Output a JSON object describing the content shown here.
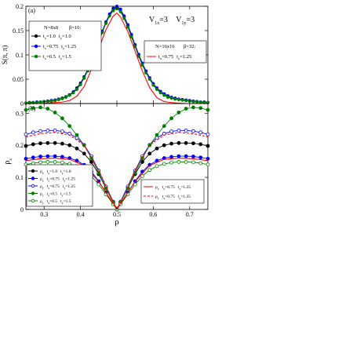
{
  "chart_data": [
    {
      "type": "line",
      "panel_label": "(a)",
      "ylabel": "S(π, π)",
      "annotation": "V₁x=3  V₁y=3",
      "annotation_parts": {
        "a": "V",
        "a_sub": "1x",
        "a_val": "=3",
        "b": "V",
        "b_sub": "1y",
        "b_val": "=3"
      },
      "xlim": [
        0.25,
        0.75
      ],
      "ylim": [
        0,
        0.2
      ],
      "yticks": [
        0,
        0.05,
        0.1,
        0.15,
        0.2
      ],
      "ytick_labels": [
        "0",
        "0.05",
        "0.1",
        "0.15",
        "0.2"
      ],
      "legend_left_title": [
        "N=8x8",
        "β=16:"
      ],
      "legend_right_title": [
        "N=16x16",
        "β=32:"
      ],
      "series": [
        {
          "name": "tₓ=1.0  tᵧ=1.0",
          "color": "#000000",
          "marker": "filled",
          "group": "left",
          "label_parts": [
            "t",
            "x",
            "=1.0",
            "t",
            "y",
            "=1.0"
          ],
          "x": [
            0.25,
            0.26,
            0.27,
            0.28,
            0.29,
            0.3,
            0.31,
            0.32,
            0.33,
            0.34,
            0.35,
            0.36,
            0.37,
            0.38,
            0.39,
            0.4,
            0.41,
            0.42,
            0.43,
            0.44,
            0.45,
            0.46,
            0.47,
            0.48,
            0.49,
            0.5,
            0.51,
            0.52,
            0.53,
            0.54,
            0.55,
            0.56,
            0.57,
            0.58,
            0.59,
            0.6,
            0.61,
            0.62,
            0.63,
            0.64,
            0.65,
            0.66,
            0.67,
            0.68,
            0.69,
            0.7,
            0.71,
            0.72,
            0.73,
            0.74,
            0.75
          ],
          "y": [
            0.001,
            0.002,
            0.002,
            0.003,
            0.003,
            0.004,
            0.005,
            0.006,
            0.007,
            0.009,
            0.011,
            0.014,
            0.018,
            0.024,
            0.032,
            0.042,
            0.055,
            0.07,
            0.088,
            0.108,
            0.128,
            0.148,
            0.166,
            0.182,
            0.194,
            0.198,
            0.192,
            0.178,
            0.16,
            0.14,
            0.12,
            0.1,
            0.082,
            0.066,
            0.052,
            0.04,
            0.031,
            0.024,
            0.019,
            0.015,
            0.012,
            0.01,
            0.009,
            0.008,
            0.007,
            0.006,
            0.005,
            0.004,
            0.003,
            0.003,
            0.002
          ]
        },
        {
          "name": "tₓ=0.75  tᵧ=1.25",
          "color": "#0000ff",
          "marker": "filled",
          "group": "left",
          "label_parts": [
            "t",
            "x",
            "=0.75",
            "t",
            "y",
            "=1.25"
          ],
          "x": [
            0.25,
            0.26,
            0.27,
            0.28,
            0.29,
            0.3,
            0.31,
            0.32,
            0.33,
            0.34,
            0.35,
            0.36,
            0.37,
            0.38,
            0.39,
            0.4,
            0.41,
            0.42,
            0.43,
            0.44,
            0.45,
            0.46,
            0.47,
            0.48,
            0.49,
            0.5,
            0.51,
            0.52,
            0.53,
            0.54,
            0.55,
            0.56,
            0.57,
            0.58,
            0.59,
            0.6,
            0.61,
            0.62,
            0.63,
            0.64,
            0.65,
            0.66,
            0.67,
            0.68,
            0.69,
            0.7,
            0.71,
            0.72,
            0.73,
            0.74,
            0.75
          ],
          "y": [
            0.001,
            0.002,
            0.002,
            0.003,
            0.003,
            0.004,
            0.005,
            0.006,
            0.007,
            0.009,
            0.011,
            0.014,
            0.018,
            0.023,
            0.031,
            0.041,
            0.054,
            0.069,
            0.087,
            0.107,
            0.128,
            0.149,
            0.168,
            0.184,
            0.196,
            0.2,
            0.194,
            0.18,
            0.162,
            0.142,
            0.121,
            0.101,
            0.083,
            0.067,
            0.053,
            0.041,
            0.032,
            0.025,
            0.02,
            0.016,
            0.013,
            0.011,
            0.009,
            0.008,
            0.007,
            0.006,
            0.005,
            0.004,
            0.003,
            0.003,
            0.002
          ]
        },
        {
          "name": "tₓ=0.5  tᵧ=1.5",
          "color": "#008000",
          "marker": "filled",
          "group": "left",
          "label_parts": [
            "t",
            "x",
            "=0.5",
            "t",
            "y",
            "=1.5"
          ],
          "x": [
            0.25,
            0.26,
            0.27,
            0.28,
            0.29,
            0.3,
            0.31,
            0.32,
            0.33,
            0.34,
            0.35,
            0.36,
            0.37,
            0.38,
            0.39,
            0.4,
            0.41,
            0.42,
            0.43,
            0.44,
            0.45,
            0.46,
            0.47,
            0.48,
            0.49,
            0.5,
            0.51,
            0.52,
            0.53,
            0.54,
            0.55,
            0.56,
            0.57,
            0.58,
            0.59,
            0.6,
            0.61,
            0.62,
            0.63,
            0.64,
            0.65,
            0.66,
            0.67,
            0.68,
            0.69,
            0.7,
            0.71,
            0.72,
            0.73,
            0.74,
            0.75
          ],
          "y": [
            0.001,
            0.001,
            0.002,
            0.002,
            0.003,
            0.004,
            0.004,
            0.005,
            0.006,
            0.008,
            0.01,
            0.013,
            0.017,
            0.022,
            0.029,
            0.039,
            0.052,
            0.067,
            0.085,
            0.105,
            0.126,
            0.146,
            0.165,
            0.18,
            0.191,
            0.195,
            0.189,
            0.175,
            0.157,
            0.137,
            0.117,
            0.097,
            0.079,
            0.063,
            0.05,
            0.038,
            0.029,
            0.022,
            0.017,
            0.013,
            0.011,
            0.009,
            0.008,
            0.007,
            0.006,
            0.005,
            0.004,
            0.003,
            0.003,
            0.002,
            0.002
          ]
        },
        {
          "name": "tₓ=0.75  tᵧ=1.25",
          "color": "#ff0000",
          "marker": "none",
          "group": "right",
          "label_parts": [
            "t",
            "x",
            "=0.75",
            "t",
            "y",
            "=1.25"
          ],
          "x": [
            0.25,
            0.27,
            0.29,
            0.31,
            0.33,
            0.35,
            0.37,
            0.39,
            0.41,
            0.43,
            0.45,
            0.47,
            0.49,
            0.5,
            0.51,
            0.53,
            0.55,
            0.57,
            0.59,
            0.61,
            0.63,
            0.65,
            0.67,
            0.69,
            0.71,
            0.73,
            0.75
          ],
          "y": [
            0.0,
            0.0,
            0.0,
            0.001,
            0.002,
            0.003,
            0.006,
            0.015,
            0.035,
            0.07,
            0.112,
            0.152,
            0.18,
            0.186,
            0.178,
            0.148,
            0.108,
            0.067,
            0.033,
            0.012,
            0.004,
            0.002,
            0.001,
            0.0,
            0.0,
            0.0,
            0.0
          ]
        }
      ]
    },
    {
      "type": "line",
      "panel_label": "(b)",
      "ylabel": "ρ_s",
      "ylabel_parts": {
        "main": "ρ",
        "sub": "s"
      },
      "xlabel": "ρ",
      "xlim": [
        0.25,
        0.75
      ],
      "ylim": [
        0,
        0.33
      ],
      "xticks": [
        0.3,
        0.4,
        0.5,
        0.6,
        0.7
      ],
      "xtick_labels": [
        "0.3",
        "0.4",
        "0.5",
        "0.6",
        "0.7"
      ],
      "yticks": [
        0,
        0.1,
        0.2,
        0.3
      ],
      "ytick_labels": [
        "0",
        "0.1",
        "0.2",
        "0.3"
      ],
      "series": [
        {
          "name": "ρ_x  t_x=1.0  t_y=1.0",
          "color": "#000000",
          "marker": "filled",
          "group": "left",
          "label_parts": [
            "ρ",
            "x",
            "t",
            "x",
            "=1.0",
            "t",
            "y",
            "=1.0"
          ],
          "x": [
            0.25,
            0.27,
            0.29,
            0.31,
            0.33,
            0.35,
            0.37,
            0.39,
            0.41,
            0.43,
            0.45,
            0.47,
            0.49,
            0.5,
            0.51,
            0.53,
            0.55,
            0.57,
            0.59,
            0.61,
            0.63,
            0.65,
            0.67,
            0.69,
            0.71,
            0.73,
            0.75
          ],
          "y": [
            0.198,
            0.203,
            0.206,
            0.207,
            0.207,
            0.205,
            0.2,
            0.19,
            0.174,
            0.148,
            0.11,
            0.066,
            0.022,
            0.0,
            0.022,
            0.066,
            0.11,
            0.148,
            0.174,
            0.19,
            0.2,
            0.205,
            0.207,
            0.207,
            0.206,
            0.203,
            0.198
          ]
        },
        {
          "name": "ρ_x  t_x=0.75  t_y=1.25",
          "color": "#0000ff",
          "marker": "filled",
          "group": "left",
          "label_parts": [
            "ρ",
            "x",
            "t",
            "x",
            "=0.75",
            "t",
            "y",
            "=1.25"
          ],
          "x": [
            0.25,
            0.27,
            0.29,
            0.31,
            0.33,
            0.35,
            0.37,
            0.39,
            0.41,
            0.43,
            0.45,
            0.47,
            0.49,
            0.5,
            0.51,
            0.53,
            0.55,
            0.57,
            0.59,
            0.61,
            0.63,
            0.65,
            0.67,
            0.69,
            0.71,
            0.73,
            0.75
          ],
          "y": [
            0.158,
            0.162,
            0.165,
            0.166,
            0.166,
            0.164,
            0.16,
            0.152,
            0.139,
            0.118,
            0.088,
            0.053,
            0.018,
            0.0,
            0.018,
            0.053,
            0.088,
            0.118,
            0.139,
            0.152,
            0.16,
            0.164,
            0.166,
            0.166,
            0.165,
            0.162,
            0.158
          ]
        },
        {
          "name": "ρ_y  t_x=0.75  t_y=1.25",
          "color": "#0000ff",
          "marker": "open",
          "group": "left",
          "label_parts": [
            "ρ",
            "y",
            "t",
            "x",
            "=0.75",
            "t",
            "y",
            "=1.25"
          ],
          "x": [
            0.25,
            0.27,
            0.29,
            0.31,
            0.33,
            0.35,
            0.37,
            0.39,
            0.41,
            0.43,
            0.45,
            0.47,
            0.49,
            0.5,
            0.51,
            0.53,
            0.55,
            0.57,
            0.59,
            0.61,
            0.63,
            0.65,
            0.67,
            0.69,
            0.71,
            0.73,
            0.75
          ],
          "y": [
            0.234,
            0.24,
            0.244,
            0.246,
            0.246,
            0.243,
            0.236,
            0.223,
            0.201,
            0.166,
            0.121,
            0.071,
            0.024,
            0.0,
            0.024,
            0.071,
            0.121,
            0.166,
            0.201,
            0.223,
            0.236,
            0.243,
            0.246,
            0.246,
            0.244,
            0.24,
            0.234
          ]
        },
        {
          "name": "ρ_x  t_x=0.5  t_y=1.5",
          "color": "#008000",
          "marker": "filled",
          "group": "left",
          "label_parts": [
            "ρ",
            "x",
            "t",
            "x",
            "=0.5",
            "t",
            "y",
            "=1.5"
          ],
          "x": [
            0.25,
            0.27,
            0.29,
            0.31,
            0.33,
            0.35,
            0.37,
            0.39,
            0.41,
            0.43,
            0.45,
            0.47,
            0.49,
            0.5,
            0.51,
            0.53,
            0.55,
            0.57,
            0.59,
            0.61,
            0.63,
            0.65,
            0.67,
            0.69,
            0.71,
            0.73,
            0.75
          ],
          "y": [
            0.31,
            0.316,
            0.318,
            0.314,
            0.302,
            0.284,
            0.26,
            0.232,
            0.2,
            0.16,
            0.114,
            0.066,
            0.022,
            0.0,
            0.022,
            0.066,
            0.114,
            0.16,
            0.2,
            0.232,
            0.26,
            0.284,
            0.302,
            0.314,
            0.318,
            0.316,
            0.31
          ]
        },
        {
          "name": "ρ_y  t_x=0.5  t_y=1.5",
          "color": "#008000",
          "marker": "open",
          "group": "left",
          "label_parts": [
            "ρ",
            "y",
            "t",
            "x",
            "=0.5",
            "t",
            "y",
            "=1.5"
          ],
          "x": [
            0.25,
            0.27,
            0.29,
            0.31,
            0.33,
            0.35,
            0.37,
            0.39,
            0.41,
            0.43,
            0.45,
            0.47,
            0.49,
            0.5,
            0.51,
            0.53,
            0.55,
            0.57,
            0.59,
            0.61,
            0.63,
            0.65,
            0.67,
            0.69,
            0.71,
            0.73,
            0.75
          ],
          "y": [
            0.14,
            0.144,
            0.147,
            0.148,
            0.148,
            0.146,
            0.142,
            0.135,
            0.123,
            0.104,
            0.078,
            0.047,
            0.016,
            0.0,
            0.016,
            0.047,
            0.078,
            0.104,
            0.123,
            0.135,
            0.142,
            0.146,
            0.148,
            0.148,
            0.147,
            0.144,
            0.14
          ]
        },
        {
          "name": "ρ_x  t_x=0.75  t_y=1.25",
          "color": "#ff0000",
          "marker": "none",
          "dash": false,
          "group": "right",
          "label_parts": [
            "ρ",
            "x",
            "t",
            "x",
            "=0.75",
            "t",
            "y",
            "=1.25"
          ],
          "x": [
            0.25,
            0.29,
            0.33,
            0.37,
            0.41,
            0.45,
            0.49,
            0.5,
            0.51,
            0.55,
            0.59,
            0.63,
            0.67,
            0.71,
            0.75
          ],
          "y": [
            0.152,
            0.158,
            0.16,
            0.156,
            0.137,
            0.087,
            0.018,
            0.0,
            0.018,
            0.087,
            0.137,
            0.156,
            0.16,
            0.158,
            0.152
          ]
        },
        {
          "name": "ρ_y  t_x=0.75  t_y=1.25",
          "color": "#ff0000",
          "marker": "none",
          "dash": true,
          "group": "right",
          "label_parts": [
            "ρ",
            "y",
            "t",
            "x",
            "=0.75",
            "t",
            "y",
            "=1.25"
          ],
          "x": [
            0.25,
            0.29,
            0.33,
            0.37,
            0.41,
            0.45,
            0.49,
            0.5,
            0.51,
            0.55,
            0.59,
            0.63,
            0.67,
            0.71,
            0.75
          ],
          "y": [
            0.226,
            0.236,
            0.24,
            0.232,
            0.2,
            0.122,
            0.024,
            0.0,
            0.024,
            0.122,
            0.2,
            0.232,
            0.24,
            0.236,
            0.226
          ]
        }
      ]
    }
  ]
}
